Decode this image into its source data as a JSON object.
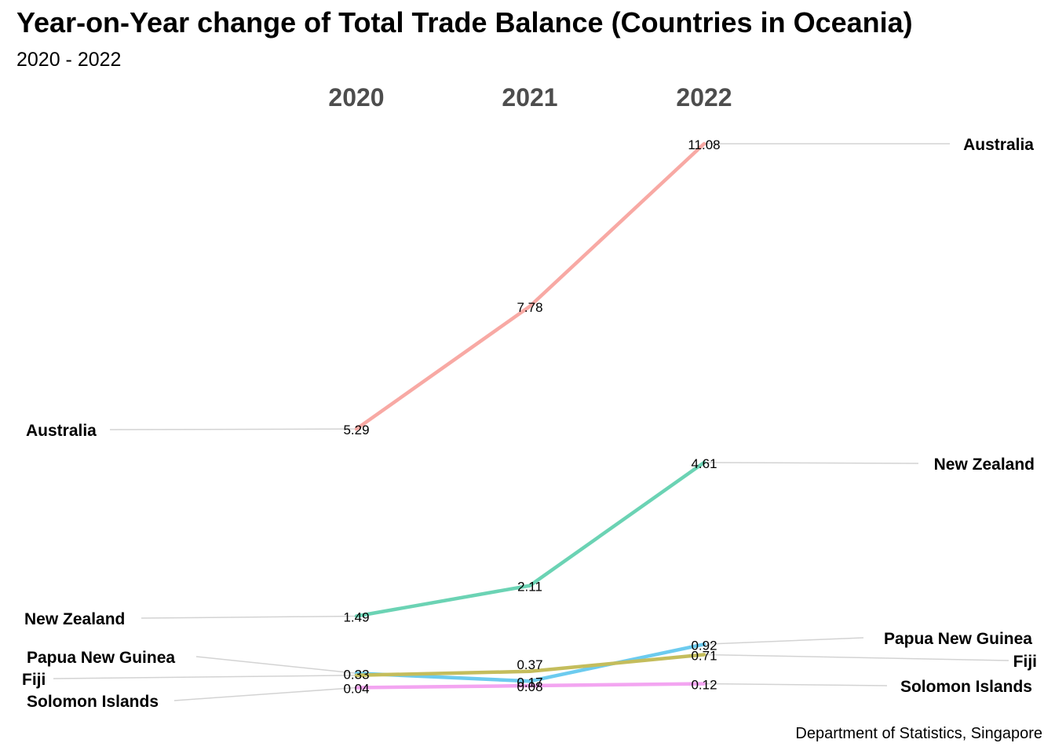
{
  "chart_data": {
    "type": "line",
    "title": "Year-on-Year change of Total Trade Balance (Countries in Oceania)",
    "subtitle": "2020 - 2022",
    "caption": "Department of Statistics, Singapore",
    "categories": [
      "2020",
      "2021",
      "2022"
    ],
    "series": [
      {
        "name": "Australia",
        "values": [
          5.29,
          7.78,
          11.08
        ],
        "color": "#f8a9a4"
      },
      {
        "name": "New Zealand",
        "values": [
          1.49,
          2.11,
          4.61
        ],
        "color": "#6bd3b4"
      },
      {
        "name": "Papua New Guinea",
        "values": [
          0.33,
          0.17,
          0.92
        ],
        "color": "#6ccbef"
      },
      {
        "name": "Fiji",
        "values": [
          0.29,
          0.37,
          0.71
        ],
        "color": "#c4bd5c"
      },
      {
        "name": "Solomon Islands",
        "values": [
          0.04,
          0.08,
          0.12
        ],
        "color": "#f3a5f1"
      }
    ],
    "point_labels": [
      [
        "5.29",
        "7.78",
        "11.08"
      ],
      [
        "1.49",
        "2.11",
        "4.61"
      ],
      [
        "0.33",
        "0.17",
        "0.92"
      ],
      [
        "",
        "0.37",
        "0.71"
      ],
      [
        "0.04",
        "0.08",
        "0.12"
      ]
    ],
    "ylim": [
      0,
      11.08
    ],
    "grid": false,
    "legend": "none"
  }
}
